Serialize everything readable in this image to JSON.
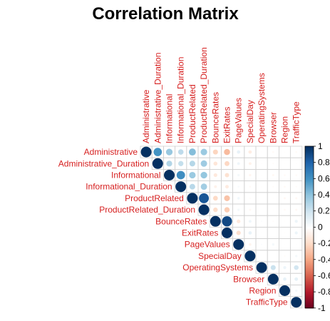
{
  "chart_data": {
    "type": "heatmap",
    "title": "Correlation Matrix",
    "layout": "upper-triangle circles",
    "label_color": "#d61f1f",
    "variables": [
      "Administrative",
      "Administrative_Duration",
      "Informational",
      "Informational_Duration",
      "ProductRelated",
      "ProductRelated_Duration",
      "BounceRates",
      "ExitRates",
      "PageValues",
      "SpecialDay",
      "OperatingSystems",
      "Browser",
      "Region",
      "TrafficType"
    ],
    "matrix": [
      [
        1,
        0.6,
        0.38,
        0.26,
        0.43,
        0.37,
        -0.22,
        -0.32,
        0.1,
        -0.1,
        -0.01,
        -0.03,
        -0.01,
        -0.03
      ],
      [
        0.6,
        1,
        0.3,
        0.24,
        0.29,
        0.36,
        -0.14,
        -0.21,
        0.07,
        -0.07,
        -0.01,
        -0.02,
        -0.01,
        -0.01
      ],
      [
        0.38,
        0.3,
        1,
        0.62,
        0.37,
        0.39,
        -0.12,
        -0.16,
        0.05,
        -0.05,
        -0.01,
        -0.04,
        -0.03,
        -0.03
      ],
      [
        0.26,
        0.24,
        0.62,
        1,
        0.28,
        0.35,
        -0.07,
        -0.11,
        0.03,
        -0.03,
        -0.01,
        -0.02,
        -0.03,
        -0.02
      ],
      [
        0.43,
        0.29,
        0.37,
        0.28,
        1,
        0.86,
        -0.2,
        -0.29,
        0.06,
        -0.02,
        0.0,
        -0.01,
        -0.04,
        -0.04
      ],
      [
        0.37,
        0.36,
        0.39,
        0.35,
        0.86,
        1,
        -0.18,
        -0.25,
        0.05,
        -0.04,
        0.01,
        -0.01,
        -0.03,
        -0.04
      ],
      [
        -0.22,
        -0.14,
        -0.12,
        -0.07,
        -0.2,
        -0.18,
        1,
        0.91,
        -0.12,
        0.07,
        0.02,
        -0.02,
        -0.01,
        0.08
      ],
      [
        -0.32,
        -0.21,
        -0.16,
        -0.11,
        -0.29,
        -0.25,
        0.91,
        1,
        -0.17,
        0.1,
        0.01,
        -0.0,
        -0.01,
        0.08
      ],
      [
        0.1,
        0.07,
        0.05,
        0.03,
        0.06,
        0.05,
        -0.12,
        -0.17,
        1,
        -0.06,
        0.02,
        0.05,
        0.01,
        0.01
      ],
      [
        -0.1,
        -0.07,
        -0.05,
        -0.03,
        -0.02,
        -0.04,
        0.07,
        0.1,
        -0.06,
        1,
        0.01,
        0.0,
        -0.02,
        0.05
      ],
      [
        -0.01,
        -0.01,
        -0.01,
        -0.01,
        0.0,
        0.01,
        0.02,
        0.01,
        0.02,
        0.01,
        1,
        0.22,
        0.08,
        0.19
      ],
      [
        -0.03,
        -0.02,
        -0.04,
        -0.02,
        -0.01,
        -0.01,
        -0.02,
        -0.0,
        0.05,
        0.0,
        0.22,
        1,
        0.1,
        0.11
      ],
      [
        -0.01,
        -0.01,
        -0.03,
        -0.03,
        -0.04,
        -0.03,
        -0.01,
        -0.01,
        0.01,
        -0.02,
        0.08,
        0.1,
        1,
        0.05
      ],
      [
        -0.03,
        -0.01,
        -0.03,
        -0.02,
        -0.04,
        -0.04,
        0.08,
        0.08,
        0.01,
        0.05,
        0.19,
        0.11,
        0.05,
        1
      ]
    ],
    "colorbar": {
      "range": [
        -1,
        1
      ],
      "ticks": [
        "-1",
        "-0.8",
        "-0.6",
        "-0.4",
        "-0.2",
        "0",
        "0.2",
        "0.4",
        "0.6",
        "0.8",
        "1"
      ],
      "colors": [
        "#67001f",
        "#b2182b",
        "#d6604d",
        "#f4a582",
        "#fddbc7",
        "#ffffff",
        "#d1e5f0",
        "#92c5de",
        "#4393c3",
        "#2166ac",
        "#053061"
      ]
    },
    "grid": true
  }
}
